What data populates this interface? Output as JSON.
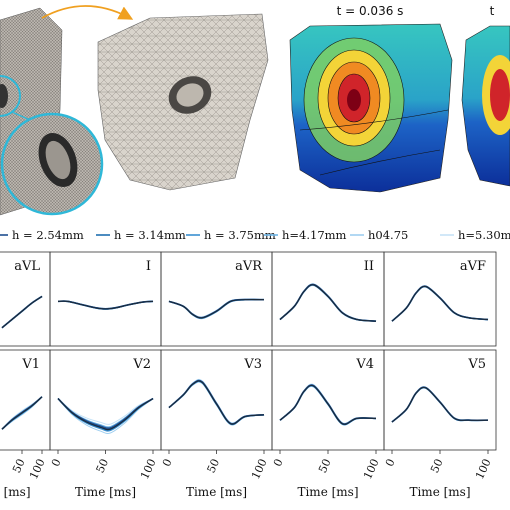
{
  "top": {
    "snapshot_labels": [
      "t = 0.036 s",
      "t"
    ]
  },
  "legend": [
    {
      "label": "h = 2.54mm",
      "color": "#1f4f8f",
      "width": 1.6
    },
    {
      "label": "h = 3.14mm",
      "color": "#1f6fb0",
      "width": 1.6
    },
    {
      "label": "h = 3.75mm",
      "color": "#3a8fd0",
      "width": 1.4
    },
    {
      "label": "h=4.17mm",
      "color": "#6cb4e6",
      "width": 1.2
    },
    {
      "label": "h04.75",
      "color": "#9fcff0",
      "width": 1.0
    },
    {
      "label": "h=5.30m",
      "color": "#c6e3f7",
      "width": 1.0
    }
  ],
  "colors": {
    "highres_curve": "#1b2a3a",
    "frame": "#333333"
  },
  "chart_data": {
    "type": "line",
    "xlabel": "Time [ms]",
    "xticks": [
      0,
      50,
      100
    ],
    "xlim": [
      0,
      100
    ],
    "ylim": [
      -1,
      1
    ],
    "series_names": [
      "h = 2.54mm",
      "h = 3.14mm",
      "h = 3.75mm",
      "h=4.17mm",
      "h04.75",
      "h=5.30m"
    ],
    "panels": [
      {
        "lead": "aVL",
        "row": 0,
        "col": 0,
        "x": [
          0,
          25,
          50,
          75,
          100
        ],
        "y": [
          -0.75,
          -0.5,
          -0.25,
          0.0,
          0.2
        ],
        "spread": 0.02,
        "shown_x": [
          40,
          100
        ]
      },
      {
        "lead": "I",
        "row": 0,
        "col": 1,
        "x": [
          0,
          10,
          25,
          40,
          50,
          60,
          75,
          90,
          100
        ],
        "y": [
          0.05,
          0.05,
          -0.05,
          -0.15,
          -0.18,
          -0.15,
          -0.05,
          0.03,
          0.05
        ],
        "spread": 0.02
      },
      {
        "lead": "aVR",
        "row": 0,
        "col": 2,
        "x": [
          0,
          15,
          25,
          35,
          50,
          65,
          80,
          100
        ],
        "y": [
          0.05,
          -0.1,
          -0.35,
          -0.45,
          -0.25,
          0.05,
          0.1,
          0.1
        ],
        "spread": 0.04
      },
      {
        "lead": "II",
        "row": 0,
        "col": 3,
        "x": [
          0,
          15,
          25,
          35,
          50,
          65,
          80,
          100
        ],
        "y": [
          -0.5,
          -0.1,
          0.35,
          0.55,
          0.2,
          -0.3,
          -0.5,
          -0.55
        ],
        "spread": 0.04
      },
      {
        "lead": "aVF",
        "row": 0,
        "col": 4,
        "x": [
          0,
          15,
          25,
          35,
          50,
          65,
          80,
          100
        ],
        "y": [
          -0.55,
          -0.15,
          0.3,
          0.5,
          0.15,
          -0.3,
          -0.45,
          -0.5
        ],
        "spread": 0.03
      },
      {
        "lead": "V1",
        "row": 1,
        "col": 0,
        "x": [
          0,
          25,
          50,
          75,
          100
        ],
        "y": [
          -0.7,
          -0.45,
          -0.25,
          -0.05,
          0.2
        ],
        "spread": 0.08,
        "shown_x": [
          40,
          100
        ]
      },
      {
        "lead": "V2",
        "row": 1,
        "col": 1,
        "x": [
          0,
          15,
          30,
          45,
          55,
          70,
          85,
          100
        ],
        "y": [
          0.15,
          -0.25,
          -0.5,
          -0.65,
          -0.7,
          -0.45,
          -0.1,
          0.15
        ],
        "spread": 0.18
      },
      {
        "lead": "V3",
        "row": 1,
        "col": 2,
        "x": [
          0,
          15,
          25,
          35,
          50,
          65,
          80,
          100
        ],
        "y": [
          -0.1,
          0.25,
          0.55,
          0.6,
          0.0,
          -0.55,
          -0.35,
          -0.3
        ],
        "spread": 0.06
      },
      {
        "lead": "V4",
        "row": 1,
        "col": 3,
        "x": [
          0,
          15,
          25,
          35,
          50,
          65,
          80,
          100
        ],
        "y": [
          -0.45,
          -0.1,
          0.35,
          0.5,
          0.0,
          -0.55,
          -0.4,
          -0.4
        ],
        "spread": 0.05
      },
      {
        "lead": "V5",
        "row": 1,
        "col": 4,
        "x": [
          0,
          15,
          25,
          35,
          50,
          65,
          80,
          100
        ],
        "y": [
          -0.5,
          -0.15,
          0.3,
          0.45,
          0.05,
          -0.4,
          -0.45,
          -0.45
        ],
        "spread": 0.03
      }
    ]
  }
}
